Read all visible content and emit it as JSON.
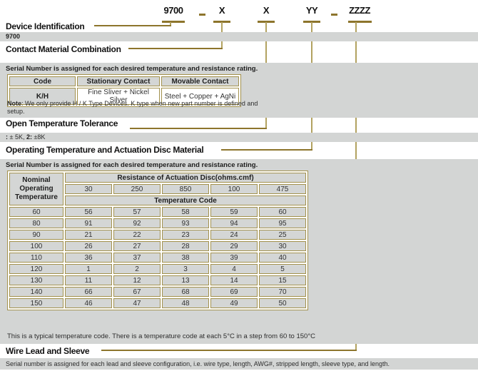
{
  "colors": {
    "accent_dark": "#8d752c",
    "accent_light": "#b2a260",
    "table_border": "#a2914d",
    "gray_band": "#d3d5d4",
    "cell_gray": "#d4d6d5"
  },
  "part_number": {
    "device": "9700",
    "dash1": "–",
    "contact_code": "X",
    "tolerance_code": "X",
    "temperature_code": "YY",
    "dash2": "–",
    "wire_code": "ZZZZ"
  },
  "device_identification": {
    "title": "Device Identification",
    "bar_text": "9700"
  },
  "contact_material": {
    "title": "Contact Material Combination",
    "serial_note": "Serial Number is assigned for each desired temperature and resistance rating.",
    "table": {
      "headers": [
        "Code",
        "Stationary Contact",
        "Movable Contact"
      ],
      "row": [
        "K/H",
        "Fine Sliver + Nickel Silver",
        "Steel + Copper + AgNi"
      ]
    },
    "note_label": "Note",
    "note_body": ": We only provide H / K Type Devices. K type when new part number is defined and setup."
  },
  "open_temperature_tolerance": {
    "title": "Open Temperature Tolerance",
    "value_parts": [
      {
        "text": ":",
        "bold": true
      },
      {
        "text": " ± 5K, ",
        "bold": false
      },
      {
        "text": "2:",
        "bold": true
      },
      {
        "text": " ±8K",
        "bold": false
      }
    ]
  },
  "operating_temperature": {
    "title": "Operating Temperature and Actuation Disc Material",
    "serial_note": "Serial Number is assigned for each desired temperature and resistance rating.",
    "footnote": "This is a typical temperature code. There is a temperature code at each 5°C in a step from 60 to 150°C"
  },
  "temperature_table": {
    "corner_lines": [
      "Nominal",
      "Operating",
      "Temperature"
    ],
    "resistance_header": "Resistance of Actuation Disc(ohms.cmf)",
    "resistance_values": [
      "30",
      "250",
      "850",
      "100",
      "475"
    ],
    "code_header": "Temperature Code",
    "rows": [
      {
        "temp": "60",
        "codes": [
          "56",
          "57",
          "58",
          "59",
          "60"
        ]
      },
      {
        "temp": "80",
        "codes": [
          "91",
          "92",
          "93",
          "94",
          "95"
        ]
      },
      {
        "temp": "90",
        "codes": [
          "21",
          "22",
          "23",
          "24",
          "25"
        ]
      },
      {
        "temp": "100",
        "codes": [
          "26",
          "27",
          "28",
          "29",
          "30"
        ]
      },
      {
        "temp": "110",
        "codes": [
          "36",
          "37",
          "38",
          "39",
          "40"
        ]
      },
      {
        "temp": "120",
        "codes": [
          "1",
          "2",
          "3",
          "4",
          "5"
        ]
      },
      {
        "temp": "130",
        "codes": [
          "11",
          "12",
          "13",
          "14",
          "15"
        ]
      },
      {
        "temp": "140",
        "codes": [
          "66",
          "67",
          "68",
          "69",
          "70"
        ]
      },
      {
        "temp": "150",
        "codes": [
          "46",
          "47",
          "48",
          "49",
          "50"
        ]
      }
    ]
  },
  "wire_lead": {
    "title": "Wire Lead and Sleeve",
    "bar_text": "Serial number is assigned for each lead and sleeve configuration, i.e. wire type, length, AWG#, stripped length, sleeve type, and length."
  }
}
